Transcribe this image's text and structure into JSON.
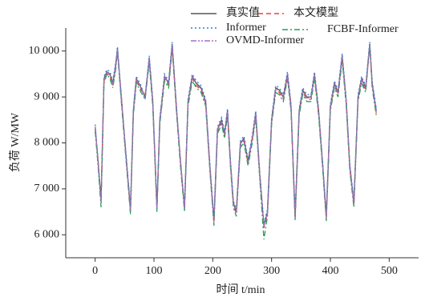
{
  "chart_data": {
    "type": "line",
    "x_label": "时间 t/min",
    "y_label": "负荷 W/MW",
    "xlim": [
      -50,
      550
    ],
    "xticks": [
      0,
      100,
      200,
      300,
      400,
      500
    ],
    "ylim": [
      5500,
      10500
    ],
    "yticks": [
      {
        "value": 6000,
        "label": "6 000"
      },
      {
        "value": 7000,
        "label": "7 000"
      },
      {
        "value": 8000,
        "label": "8 000"
      },
      {
        "value": 9000,
        "label": "9 000"
      },
      {
        "value": 10000,
        "label": "10 000"
      }
    ],
    "x": [
      0,
      5,
      10,
      15,
      20,
      25,
      30,
      35,
      38,
      45,
      52,
      60,
      65,
      70,
      78,
      85,
      92,
      98,
      105,
      110,
      118,
      125,
      131,
      138,
      145,
      152,
      158,
      165,
      172,
      180,
      188,
      195,
      202,
      208,
      215,
      220,
      225,
      230,
      235,
      240,
      247,
      253,
      260,
      267,
      273,
      280,
      287,
      293,
      300,
      307,
      313,
      320,
      327,
      333,
      340,
      347,
      353,
      360,
      367,
      373,
      380,
      387,
      393,
      400,
      407,
      413,
      420,
      427,
      433,
      440,
      447,
      453,
      460,
      467,
      471,
      478
    ],
    "series": [
      {
        "name": "真实值",
        "color": "#555555",
        "dash": "none",
        "values": [
          8350,
          7600,
          6750,
          9400,
          9550,
          9500,
          9300,
          9700,
          10050,
          8900,
          7800,
          6550,
          8700,
          9400,
          9200,
          9000,
          9850,
          8900,
          6600,
          8500,
          9450,
          9300,
          10150,
          8800,
          7600,
          6600,
          8900,
          9450,
          9300,
          9200,
          8900,
          7500,
          6300,
          8300,
          8500,
          8200,
          8700,
          7600,
          6700,
          6500,
          8000,
          8100,
          7600,
          8100,
          8650,
          7300,
          6200,
          6500,
          8500,
          9200,
          9150,
          9000,
          9500,
          8800,
          6400,
          8700,
          9150,
          9000,
          9000,
          9500,
          8700,
          7500,
          6400,
          8800,
          9300,
          9100,
          9900,
          8900,
          7500,
          6700,
          9000,
          9400,
          9200,
          10150,
          9300,
          8700
        ]
      },
      {
        "name": "本文模型",
        "color": "#e8453c",
        "dash": "6,4",
        "values": [
          8300,
          7650,
          6700,
          9350,
          9500,
          9450,
          9250,
          9650,
          10000,
          8950,
          7750,
          6500,
          8650,
          9350,
          9150,
          9050,
          9800,
          8850,
          6550,
          8450,
          9400,
          9250,
          10100,
          8750,
          7650,
          6550,
          8850,
          9400,
          9250,
          9150,
          8850,
          7450,
          6250,
          8250,
          8450,
          8150,
          8650,
          7550,
          6650,
          6450,
          7950,
          8050,
          7550,
          8050,
          8600,
          7250,
          6150,
          6450,
          8450,
          9150,
          9100,
          8950,
          9450,
          8750,
          6350,
          8650,
          9100,
          8950,
          8950,
          9450,
          8650,
          7450,
          6350,
          8750,
          9250,
          9050,
          9850,
          8850,
          7450,
          6650,
          8950,
          9350,
          9150,
          10100,
          9250,
          8650
        ]
      },
      {
        "name": "Informer",
        "color": "#3a7bd5",
        "dash": "2,3",
        "values": [
          8400,
          7550,
          6800,
          9450,
          9600,
          9550,
          9350,
          9750,
          10100,
          8850,
          7850,
          6600,
          8750,
          9450,
          9250,
          8950,
          9900,
          8950,
          6650,
          8550,
          9500,
          9350,
          10200,
          8850,
          7550,
          6650,
          8950,
          9500,
          9350,
          9250,
          8950,
          7550,
          6350,
          8350,
          8550,
          8250,
          8750,
          7650,
          6750,
          6550,
          8050,
          8150,
          7650,
          8150,
          8700,
          7350,
          6250,
          6550,
          8550,
          9250,
          9200,
          9050,
          9550,
          8850,
          6450,
          8750,
          9200,
          9050,
          9050,
          9550,
          8750,
          7550,
          6450,
          8850,
          9350,
          9150,
          9950,
          8950,
          7550,
          6750,
          9050,
          9450,
          9250,
          10200,
          9350,
          8750
        ]
      },
      {
        "name": "FCBF-Informer",
        "color": "#2a9d5c",
        "dash": "7,3,2,3",
        "values": [
          8250,
          7500,
          6600,
          9300,
          9500,
          9400,
          9200,
          9600,
          10000,
          8800,
          7700,
          6450,
          8600,
          9300,
          9100,
          8950,
          9750,
          8800,
          6500,
          8400,
          9350,
          9200,
          10050,
          8700,
          7500,
          6500,
          8800,
          9350,
          9200,
          9100,
          8800,
          7400,
          6200,
          8200,
          8400,
          8100,
          8600,
          7500,
          6600,
          6400,
          7900,
          8000,
          7500,
          8000,
          8550,
          7200,
          5900,
          6400,
          8400,
          9100,
          9050,
          8900,
          9400,
          8700,
          6300,
          8600,
          9050,
          8900,
          8900,
          9400,
          8600,
          7400,
          6300,
          8700,
          9200,
          9000,
          9800,
          8800,
          7400,
          6600,
          8900,
          9300,
          9100,
          10150,
          9200,
          8600
        ]
      },
      {
        "name": "OVMD-Informer",
        "color": "#a070c0",
        "dash": "7,2,2,2,2,2",
        "values": [
          8350,
          7580,
          6720,
          9380,
          9540,
          9480,
          9280,
          9680,
          10030,
          8880,
          7780,
          6530,
          8680,
          9380,
          9180,
          8980,
          9830,
          8880,
          6580,
          8480,
          9430,
          9280,
          10130,
          8780,
          7580,
          6580,
          8880,
          9430,
          9280,
          9180,
          8880,
          7480,
          6280,
          8280,
          8480,
          8180,
          8680,
          7580,
          6680,
          6480,
          7980,
          8080,
          7580,
          8080,
          8630,
          7280,
          6180,
          6480,
          8480,
          9180,
          9130,
          8980,
          9480,
          8780,
          6380,
          8680,
          9130,
          8980,
          8980,
          9480,
          8680,
          7480,
          6380,
          8780,
          9280,
          9080,
          9880,
          8880,
          7480,
          6680,
          8980,
          9380,
          9180,
          10130,
          9280,
          8680
        ]
      }
    ]
  }
}
